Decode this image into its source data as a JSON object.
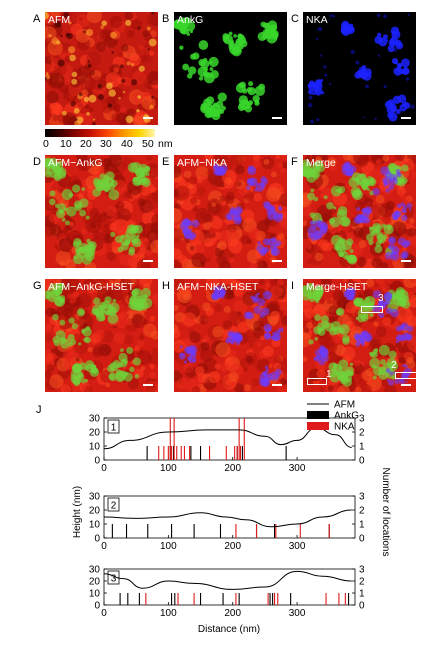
{
  "panels": {
    "A": {
      "letter": "A",
      "label": "AFM"
    },
    "B": {
      "letter": "B",
      "label": "AnkG"
    },
    "C": {
      "letter": "C",
      "label": "NKA"
    },
    "D": {
      "letter": "D",
      "label": "AFM−AnkG"
    },
    "E": {
      "letter": "E",
      "label": "AFM−NKA"
    },
    "F": {
      "letter": "F",
      "label": "Merge"
    },
    "G": {
      "letter": "G",
      "label": "AFM−AnkG-HSET"
    },
    "H": {
      "letter": "H",
      "label": "AFM−NKA-HSET"
    },
    "I": {
      "letter": "I",
      "label": "Merge-HSET"
    }
  },
  "colorbar": {
    "ticks": [
      "0",
      "10",
      "20",
      "30",
      "40",
      "50"
    ],
    "unit": "nm"
  },
  "region_marks": {
    "one": "1",
    "two": "2",
    "three": "3"
  },
  "colors": {
    "afm_red": "#e8221a",
    "ankg_green": "#39c42b",
    "nka_blue": "#2222ff",
    "ankg_bar": "#000000",
    "nka_bar": "#e01a1a"
  },
  "J": {
    "letter": "J",
    "ylabel_left": "Height (nm)",
    "ylabel_right": "Number of locations",
    "xlabel": "Distance (nm)",
    "legend": [
      "AFM",
      "AnkG",
      "NKA"
    ]
  },
  "chart_data": [
    {
      "type": "line",
      "panel_number": "1",
      "x_ticks": [
        0,
        100,
        200,
        300
      ],
      "y_left_ticks": [
        0,
        10,
        20,
        30
      ],
      "y_right_ticks": [
        0,
        1,
        2,
        3
      ],
      "xlim": [
        0,
        390
      ],
      "ylim_left": [
        0,
        30
      ],
      "ylim_right": [
        0,
        3
      ],
      "afm": {
        "x": [
          0,
          40,
          100,
          160,
          210,
          250,
          275,
          300,
          330,
          360,
          385
        ],
        "y": [
          8,
          14,
          20,
          21.5,
          21.5,
          17,
          11,
          14,
          23,
          18,
          9
        ]
      },
      "ankg": [
        67,
        103,
        108,
        135,
        150,
        207,
        215,
        283
      ],
      "nka": [
        85,
        93,
        100,
        103,
        105,
        109,
        113,
        120,
        125,
        133,
        164,
        190,
        203,
        207,
        210,
        212,
        218
      ],
      "nka_tall": [
        103,
        109,
        210,
        218
      ]
    },
    {
      "type": "line",
      "panel_number": "2",
      "x_ticks": [
        0,
        100,
        200,
        300
      ],
      "y_left_ticks": [
        0,
        10,
        20,
        30
      ],
      "y_right_ticks": [
        0,
        1,
        2,
        3
      ],
      "xlim": [
        0,
        390
      ],
      "ylim_left": [
        0,
        30
      ],
      "ylim_right": [
        0,
        3
      ],
      "afm": {
        "x": [
          0,
          50,
          100,
          150,
          190,
          220,
          260,
          300,
          340,
          385
        ],
        "y": [
          15,
          14,
          15,
          18,
          15,
          13,
          8,
          10,
          15,
          20
        ],
        "dash_from": 270
      },
      "ankg": [
        13,
        35,
        68,
        105,
        140,
        181,
        237,
        265,
        350
      ],
      "nka": [
        205,
        237,
        267,
        305,
        350
      ]
    },
    {
      "type": "line",
      "panel_number": "3",
      "x_ticks": [
        0,
        100,
        200,
        300
      ],
      "y_left_ticks": [
        0,
        10,
        20,
        30
      ],
      "y_right_ticks": [
        0,
        1,
        2,
        3
      ],
      "xlim": [
        0,
        390
      ],
      "ylim_left": [
        0,
        30
      ],
      "ylim_right": [
        0,
        3
      ],
      "afm": {
        "x": [
          0,
          30,
          60,
          100,
          140,
          200,
          250,
          300,
          340,
          385
        ],
        "y": [
          26,
          22,
          14,
          20,
          18,
          13,
          15,
          28,
          24,
          20
        ]
      },
      "ankg": [
        25,
        37,
        55,
        105,
        110,
        150,
        185,
        210,
        258,
        262,
        290,
        380
      ],
      "nka": [
        65,
        115,
        140,
        205,
        255,
        265,
        270,
        345,
        365,
        375
      ]
    }
  ]
}
